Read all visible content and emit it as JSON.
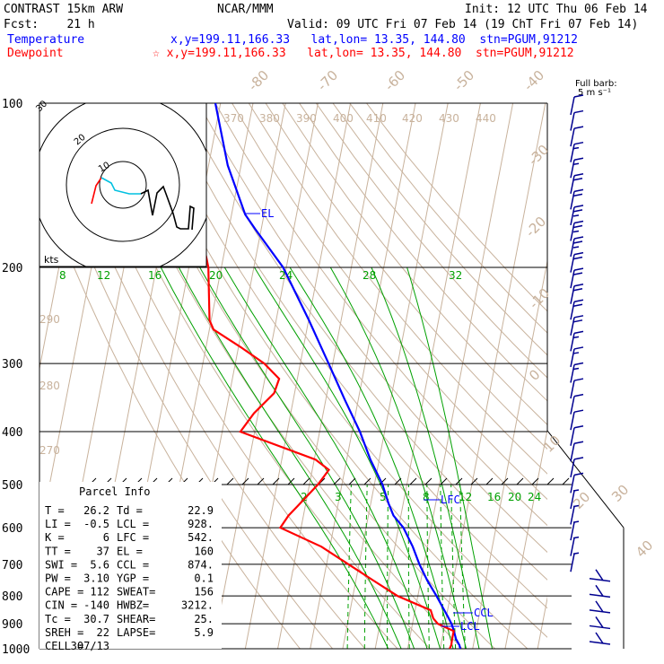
{
  "header": {
    "model": "CONTRAST 15km ARW",
    "fcst": "Fcst:    21 h",
    "org": "NCAR/MMM",
    "init": "Init: 12 UTC Thu 06 Feb 14",
    "valid": "Valid: 09 UTC Fri 07 Feb 14 (19 ChT Fri 07 Feb 14)",
    "legend_temp_label": "Temperature",
    "legend_temp_info": "x,y=199.11,166.33   lat,lon= 13.35, 144.80  stn=PGUM,91212",
    "legend_dew_label": "Dewpoint",
    "legend_dew_info": "☆ x,y=199.11,166.33   lat,lon= 13.35, 144.80  stn=PGUM,91212"
  },
  "barb_legend": {
    "line1": "Full barb:",
    "line2": "5 m s⁻¹"
  },
  "hodograph": {
    "unit_label": "kts",
    "ring_labels": [
      "10",
      "20",
      "30"
    ]
  },
  "parcel_info": {
    "title": "Parcel Info",
    "rows": [
      [
        "T  =",
        "26.2",
        "Td =",
        "22.9"
      ],
      [
        "LI =",
        "-0.5",
        "LCL =",
        "928."
      ],
      [
        "K  =",
        "6",
        "LFC =",
        "542."
      ],
      [
        "TT =",
        "37",
        "EL  =",
        "160"
      ],
      [
        "SWI =",
        "5.6",
        "CCL =",
        "874."
      ],
      [
        "PW =",
        "3.10",
        "YGP =",
        "0.1"
      ],
      [
        "CAPE =",
        "112",
        "SWEAT=",
        "156"
      ],
      [
        "CIN =",
        "-140",
        "HWBZ=",
        "3212."
      ],
      [
        "Tc =",
        "30.7",
        "SHEAR=",
        "25."
      ],
      [
        "SREH =",
        "22",
        "LAPSE=",
        "5.9"
      ],
      [
        "CELL =",
        "307/13",
        "",
        ""
      ]
    ]
  },
  "level_labels": {
    "el": "EL",
    "lfc": "LFC",
    "ccl": "CCL",
    "lcl": "LCL"
  },
  "colors": {
    "temperature": "#ff0000",
    "dewpoint": "#0000ff",
    "isotherm": "#c8b29c",
    "dry_adiabat": "#c8b29c",
    "moist_adiabat": "#00a000",
    "mixing_ratio": "#00a000",
    "barbs": "#000090"
  },
  "chart_data": {
    "type": "line",
    "title": "CONTRAST 15km ARW",
    "xlabel": "",
    "ylabel": "",
    "pressure_axis": [
      100,
      200,
      300,
      400,
      500,
      600,
      700,
      800,
      900,
      1000
    ],
    "isotherm_labels": [
      -80,
      -70,
      -60,
      -50,
      -40,
      -30,
      -20,
      -10,
      0,
      10,
      20,
      30,
      40
    ],
    "theta_labels": [
      370,
      380,
      390,
      400,
      410,
      420,
      430,
      440,
      290,
      280,
      270
    ],
    "moist_labels": [
      8,
      12,
      16,
      20,
      24,
      28,
      32
    ],
    "mixing_labels": [
      2,
      3,
      5,
      8,
      12,
      16,
      20,
      24
    ],
    "series": [
      {
        "name": "Temperature",
        "color": "#ff0000",
        "points": [
          [
            1000,
            26.2
          ],
          [
            985,
            25.7
          ],
          [
            960,
            24.3
          ],
          [
            928,
            23.2
          ],
          [
            900,
            22
          ],
          [
            874,
            20.5
          ],
          [
            850,
            19
          ],
          [
            800,
            15.7
          ],
          [
            750,
            12
          ],
          [
            700,
            8.6
          ],
          [
            650,
            5.5
          ],
          [
            600,
            1.5
          ],
          [
            570,
            -2.3
          ],
          [
            542,
            -4.5
          ],
          [
            500,
            -7.5
          ],
          [
            450,
            -12.7
          ],
          [
            400,
            -17.6
          ],
          [
            350,
            -24.1
          ],
          [
            300,
            -31.3
          ],
          [
            250,
            -39.9
          ],
          [
            200,
            -51
          ],
          [
            170,
            -61.9
          ],
          [
            160,
            -65.8
          ],
          [
            130,
            -74.1
          ],
          [
            100,
            -81.6
          ]
        ]
      },
      {
        "name": "Dewpoint",
        "color": "#0000ff",
        "points": [
          [
            1000,
            22.9
          ],
          [
            985,
            23.2
          ],
          [
            960,
            23.1
          ],
          [
            928,
            23.1
          ],
          [
            900,
            17.8
          ],
          [
            880,
            16.1
          ],
          [
            850,
            14.8
          ],
          [
            800,
            3.7
          ],
          [
            750,
            -4.6
          ],
          [
            700,
            -13.3
          ],
          [
            650,
            -22.6
          ],
          [
            600,
            -36.4
          ],
          [
            570,
            -34.6
          ],
          [
            550,
            -32.6
          ],
          [
            500,
            -27.4
          ],
          [
            470,
            -24.9
          ],
          [
            450,
            -29.6
          ],
          [
            400,
            -54.4
          ],
          [
            370,
            -51.3
          ],
          [
            340,
            -46.3
          ],
          [
            320,
            -45.6
          ],
          [
            300,
            -51.1
          ],
          [
            280,
            -59.3
          ],
          [
            260,
            -68.7
          ],
          [
            250,
            -70.5
          ],
          [
            200,
            -74
          ],
          [
            170,
            -78.7
          ],
          [
            150,
            -80.7
          ],
          [
            100,
            -93.5
          ]
        ]
      }
    ],
    "levels": {
      "LCL": 928,
      "LFC": 542,
      "EL": 160,
      "CCL": 874
    },
    "wind_barb_kts": [
      10,
      10,
      10,
      15,
      15,
      20,
      20,
      25,
      25,
      25,
      20,
      20,
      20,
      20,
      20,
      15,
      15,
      15,
      10,
      10,
      10,
      10,
      10,
      10,
      10,
      5,
      5,
      5,
      5,
      5,
      5,
      10,
      10,
      10,
      10
    ]
  }
}
